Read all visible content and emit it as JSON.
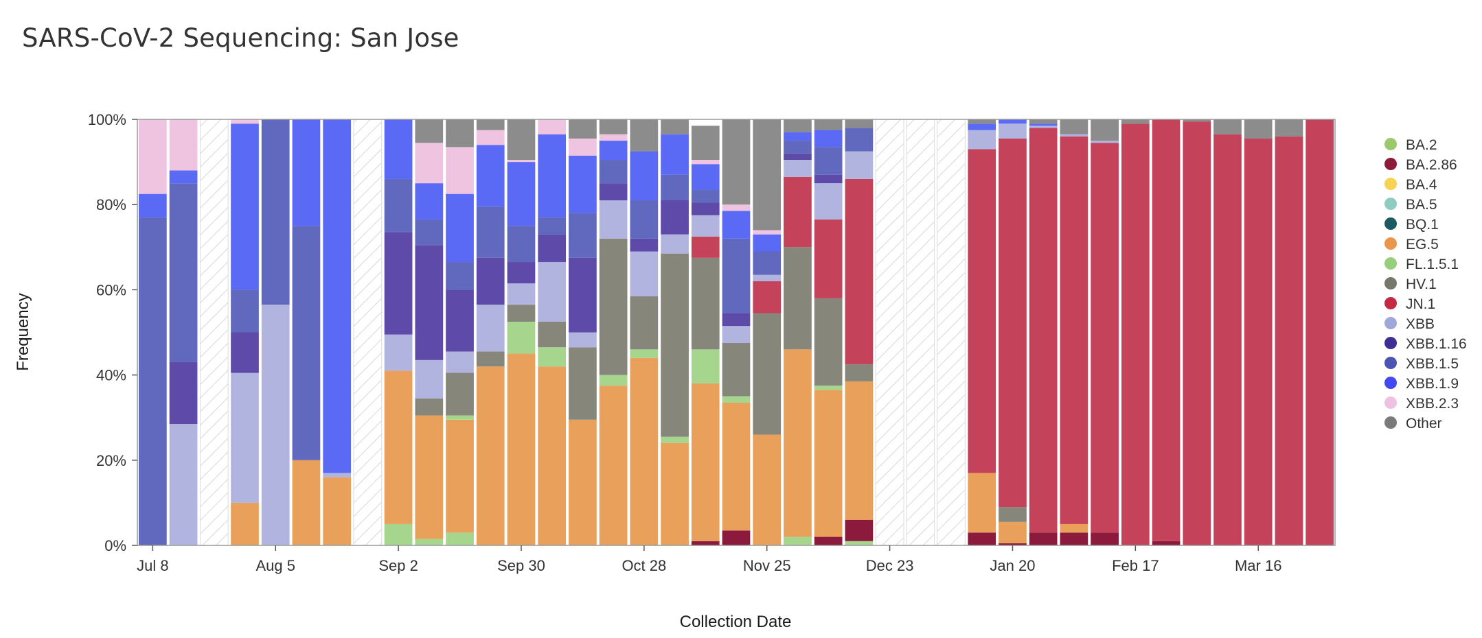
{
  "page": {
    "title": "SARS-CoV-2 Sequencing: San Jose"
  },
  "chart_data": {
    "type": "bar",
    "stacked": true,
    "title": "SARS-CoV-2 Sequencing: San Jose",
    "xlabel": "Collection Date",
    "ylabel": "Frequency",
    "ylim": [
      0,
      100
    ],
    "y_ticks": [
      "0%",
      "20%",
      "40%",
      "60%",
      "80%",
      "100%"
    ],
    "x_tick_labels": [
      "Jul 8",
      "Aug 5",
      "Sep 2",
      "Sep 30",
      "Oct 28",
      "Nov 25",
      "Dec 23",
      "Jan 20",
      "Feb 17",
      "Mar 16"
    ],
    "x_tick_weeks": [
      0,
      4,
      8,
      12,
      16,
      20,
      24,
      28,
      32,
      36
    ],
    "legend_position": "right",
    "series": [
      {
        "name": "BA.2",
        "color": "#9cce6b"
      },
      {
        "name": "BA.2.86",
        "color": "#8b1a3c"
      },
      {
        "name": "BA.4",
        "color": "#f5d456"
      },
      {
        "name": "BA.5",
        "color": "#89cbc0"
      },
      {
        "name": "BQ.1",
        "color": "#1f5a60"
      },
      {
        "name": "EG.5",
        "color": "#e8a05a"
      },
      {
        "name": "FL.1.5.1",
        "color": "#a6d68e"
      },
      {
        "name": "HV.1",
        "color": "#86877a"
      },
      {
        "name": "JN.1",
        "color": "#c5435a"
      },
      {
        "name": "XBB",
        "color": "#b0b4de"
      },
      {
        "name": "XBB.1.16",
        "color": "#5e4aa8"
      },
      {
        "name": "XBB.1.5",
        "color": "#6069bd"
      },
      {
        "name": "XBB.1.9",
        "color": "#5b6af5"
      },
      {
        "name": "XBB.2.3",
        "color": "#efc4e0"
      },
      {
        "name": "Other",
        "color": "#8c8c8c"
      }
    ],
    "legend_colors": {
      "BA.2": "#9bc96d",
      "BA.2.86": "#8b1d3a",
      "BA.4": "#f7d354",
      "BA.5": "#8ecbc2",
      "BQ.1": "#1c5a61",
      "EG.5": "#e9974a",
      "FL.1.5.1": "#97d07c",
      "HV.1": "#77786a",
      "JN.1": "#c42a45",
      "XBB": "#9fa8da",
      "XBB.1.16": "#3f2f94",
      "XBB.1.5": "#4c55b3",
      "XBB.1.9": "#4249f0",
      "XBB.2.3": "#f0c0e0",
      "Other": "#7a7a7a"
    },
    "bars": [
      {
        "week": 0,
        "stack": [
          [
            "XBB.1.5",
            77
          ],
          [
            "XBB.1.9",
            5.5
          ],
          [
            "XBB.2.3",
            17.5
          ]
        ]
      },
      {
        "week": 1,
        "stack": [
          [
            "XBB",
            28.5
          ],
          [
            "XBB.1.16",
            14.5
          ],
          [
            "XBB.1.5",
            42
          ],
          [
            "XBB.1.9",
            3
          ],
          [
            "XBB.2.3",
            12
          ]
        ]
      },
      {
        "week": 2,
        "nodata": true
      },
      {
        "week": 3,
        "stack": [
          [
            "EG.5",
            10
          ],
          [
            "XBB",
            30.5
          ],
          [
            "XBB.1.16",
            9.5
          ],
          [
            "XBB.1.5",
            10
          ],
          [
            "XBB.1.9",
            39
          ],
          [
            "XBB.2.3",
            1
          ]
        ]
      },
      {
        "week": 4,
        "stack": [
          [
            "XBB",
            56.5
          ],
          [
            "XBB.1.5",
            43.5
          ]
        ]
      },
      {
        "week": 5,
        "stack": [
          [
            "EG.5",
            20
          ],
          [
            "XBB.1.5",
            55
          ],
          [
            "XBB.1.9",
            25
          ]
        ]
      },
      {
        "week": 6,
        "stack": [
          [
            "EG.5",
            16
          ],
          [
            "XBB",
            1
          ],
          [
            "XBB.1.9",
            83
          ]
        ]
      },
      {
        "week": 7,
        "nodata": true
      },
      {
        "week": 8,
        "stack": [
          [
            "FL.1.5.1",
            5
          ],
          [
            "EG.5",
            36
          ],
          [
            "XBB",
            8.5
          ],
          [
            "XBB.1.16",
            24
          ],
          [
            "XBB.1.5",
            12.5
          ],
          [
            "XBB.1.9",
            14
          ]
        ]
      },
      {
        "week": 9,
        "stack": [
          [
            "FL.1.5.1",
            1.5
          ],
          [
            "EG.5",
            29
          ],
          [
            "HV.1",
            4
          ],
          [
            "XBB",
            9
          ],
          [
            "XBB.1.16",
            27
          ],
          [
            "XBB.1.5",
            6
          ],
          [
            "XBB.1.9",
            8.5
          ],
          [
            "XBB.2.3",
            9.5
          ],
          [
            "Other",
            5.5
          ]
        ]
      },
      {
        "week": 10,
        "stack": [
          [
            "FL.1.5.1",
            3
          ],
          [
            "EG.5",
            26.5
          ],
          [
            "FL.1.5.1",
            1
          ],
          [
            "HV.1",
            10
          ],
          [
            "XBB",
            5
          ],
          [
            "XBB.1.16",
            14.5
          ],
          [
            "XBB.1.5",
            6.5
          ],
          [
            "XBB.1.9",
            16
          ],
          [
            "XBB.2.3",
            11
          ],
          [
            "Other",
            6.5
          ]
        ]
      },
      {
        "week": 11,
        "stack": [
          [
            "EG.5",
            42
          ],
          [
            "HV.1",
            3.5
          ],
          [
            "XBB",
            11
          ],
          [
            "XBB.1.16",
            11
          ],
          [
            "XBB.1.5",
            12
          ],
          [
            "XBB.1.9",
            14.5
          ],
          [
            "XBB.2.3",
            3.5
          ],
          [
            "Other",
            2.5
          ]
        ]
      },
      {
        "week": 12,
        "stack": [
          [
            "EG.5",
            45
          ],
          [
            "FL.1.5.1",
            7.5
          ],
          [
            "HV.1",
            4
          ],
          [
            "XBB",
            5
          ],
          [
            "XBB.1.16",
            5
          ],
          [
            "XBB.1.5",
            8.5
          ],
          [
            "XBB.1.9",
            15
          ],
          [
            "XBB.2.3",
            0.5
          ],
          [
            "Other",
            9.5
          ]
        ]
      },
      {
        "week": 13,
        "stack": [
          [
            "EG.5",
            42
          ],
          [
            "FL.1.5.1",
            4.5
          ],
          [
            "HV.1",
            6
          ],
          [
            "XBB",
            14
          ],
          [
            "XBB.1.16",
            6.5
          ],
          [
            "XBB.1.5",
            4
          ],
          [
            "XBB.1.9",
            19.5
          ],
          [
            "XBB.2.3",
            3.5
          ]
        ]
      },
      {
        "week": 14,
        "stack": [
          [
            "EG.5",
            29.5
          ],
          [
            "HV.1",
            17
          ],
          [
            "XBB",
            3.5
          ],
          [
            "XBB.1.16",
            17.5
          ],
          [
            "XBB.1.5",
            10.5
          ],
          [
            "XBB.1.9",
            13.5
          ],
          [
            "XBB.2.3",
            4
          ],
          [
            "Other",
            4.5
          ]
        ]
      },
      {
        "week": 15,
        "stack": [
          [
            "EG.5",
            37.5
          ],
          [
            "FL.1.5.1",
            2.5
          ],
          [
            "HV.1",
            32
          ],
          [
            "XBB",
            9
          ],
          [
            "XBB.1.16",
            4
          ],
          [
            "XBB.1.5",
            5.5
          ],
          [
            "XBB.1.9",
            4.5
          ],
          [
            "XBB.2.3",
            1.5
          ],
          [
            "Other",
            3.5
          ]
        ]
      },
      {
        "week": 16,
        "stack": [
          [
            "EG.5",
            44
          ],
          [
            "FL.1.5.1",
            2
          ],
          [
            "HV.1",
            12.5
          ],
          [
            "XBB",
            10.5
          ],
          [
            "XBB.1.16",
            3
          ],
          [
            "XBB.1.5",
            9
          ],
          [
            "XBB.1.9",
            11.5
          ],
          [
            "Other",
            7.5
          ]
        ]
      },
      {
        "week": 17,
        "stack": [
          [
            "EG.5",
            24
          ],
          [
            "FL.1.5.1",
            1.5
          ],
          [
            "HV.1",
            43
          ],
          [
            "XBB",
            4.5
          ],
          [
            "XBB.1.16",
            8
          ],
          [
            "XBB.1.5",
            6
          ],
          [
            "XBB.1.9",
            9.5
          ],
          [
            "Other",
            3.5
          ]
        ]
      },
      {
        "week": 18,
        "stack": [
          [
            "BA.2.86",
            1
          ],
          [
            "EG.5",
            37
          ],
          [
            "FL.1.5.1",
            8
          ],
          [
            "HV.1",
            21.5
          ],
          [
            "JN.1",
            5
          ],
          [
            "XBB",
            5
          ],
          [
            "XBB.1.16",
            3
          ],
          [
            "XBB.1.5",
            3
          ],
          [
            "XBB.1.9",
            6
          ],
          [
            "XBB.2.3",
            1
          ],
          [
            "Other",
            8
          ]
        ]
      },
      {
        "week": 19,
        "stack": [
          [
            "BA.2.86",
            3.5
          ],
          [
            "EG.5",
            30
          ],
          [
            "FL.1.5.1",
            1.5
          ],
          [
            "HV.1",
            12.5
          ],
          [
            "XBB",
            4
          ],
          [
            "XBB.1.16",
            3
          ],
          [
            "XBB.1.5",
            17.5
          ],
          [
            "XBB.1.9",
            6.5
          ],
          [
            "XBB.2.3",
            1.5
          ],
          [
            "Other",
            20
          ]
        ]
      },
      {
        "week": 20,
        "stack": [
          [
            "EG.5",
            26
          ],
          [
            "HV.1",
            28.5
          ],
          [
            "JN.1",
            7.5
          ],
          [
            "XBB",
            1.5
          ],
          [
            "XBB.1.5",
            5.5
          ],
          [
            "XBB.1.9",
            4
          ],
          [
            "XBB.2.3",
            1
          ],
          [
            "Other",
            26
          ]
        ]
      },
      {
        "week": 21,
        "stack": [
          [
            "FL.1.5.1",
            2
          ],
          [
            "EG.5",
            44
          ],
          [
            "HV.1",
            24
          ],
          [
            "JN.1",
            16.5
          ],
          [
            "XBB",
            4
          ],
          [
            "XBB.1.16",
            1.5
          ],
          [
            "XBB.1.5",
            3
          ],
          [
            "XBB.1.9",
            2
          ],
          [
            "Other",
            3
          ]
        ]
      },
      {
        "week": 22,
        "stack": [
          [
            "BA.2.86",
            2
          ],
          [
            "EG.5",
            34.5
          ],
          [
            "FL.1.5.1",
            1
          ],
          [
            "HV.1",
            20.5
          ],
          [
            "JN.1",
            18.5
          ],
          [
            "XBB",
            8.5
          ],
          [
            "XBB.1.16",
            2
          ],
          [
            "XBB.1.5",
            6.5
          ],
          [
            "XBB.1.9",
            4
          ],
          [
            "Other",
            2.5
          ]
        ]
      },
      {
        "week": 23,
        "stack": [
          [
            "FL.1.5.1",
            1
          ],
          [
            "BA.2.86",
            5
          ],
          [
            "EG.5",
            32.5
          ],
          [
            "HV.1",
            4
          ],
          [
            "JN.1",
            43.5
          ],
          [
            "XBB",
            6.5
          ],
          [
            "XBB.1.5",
            5.5
          ],
          [
            "Other",
            2
          ]
        ]
      },
      {
        "week": 24,
        "nodata": true
      },
      {
        "week": 25,
        "nodata": true
      },
      {
        "week": 26,
        "nodata": true
      },
      {
        "week": 27,
        "stack": [
          [
            "BA.2.86",
            3
          ],
          [
            "EG.5",
            14
          ],
          [
            "JN.1",
            76
          ],
          [
            "XBB",
            4.5
          ],
          [
            "XBB.1.9",
            1.5
          ],
          [
            "Other",
            1
          ]
        ]
      },
      {
        "week": 28,
        "stack": [
          [
            "BA.2.86",
            0.5
          ],
          [
            "EG.5",
            5
          ],
          [
            "HV.1",
            3.5
          ],
          [
            "JN.1",
            86.5
          ],
          [
            "XBB",
            3.5
          ],
          [
            "XBB.1.9",
            1
          ]
        ]
      },
      {
        "week": 29,
        "stack": [
          [
            "BA.2.86",
            3
          ],
          [
            "JN.1",
            95
          ],
          [
            "XBB",
            0.5
          ],
          [
            "XBB.1.9",
            0.5
          ],
          [
            "Other",
            1
          ]
        ]
      },
      {
        "week": 30,
        "stack": [
          [
            "BA.2.86",
            3
          ],
          [
            "EG.5",
            2
          ],
          [
            "JN.1",
            91
          ],
          [
            "XBB",
            0.5
          ],
          [
            "Other",
            3.5
          ]
        ]
      },
      {
        "week": 31,
        "stack": [
          [
            "BA.2.86",
            3
          ],
          [
            "JN.1",
            91.5
          ],
          [
            "XBB",
            0.5
          ],
          [
            "Other",
            5
          ]
        ]
      },
      {
        "week": 32,
        "stack": [
          [
            "JN.1",
            99
          ],
          [
            "Other",
            1
          ]
        ]
      },
      {
        "week": 33,
        "stack": [
          [
            "BA.2.86",
            1
          ],
          [
            "JN.1",
            99
          ]
        ]
      },
      {
        "week": 34,
        "stack": [
          [
            "JN.1",
            99.5
          ],
          [
            "Other",
            0.5
          ]
        ]
      },
      {
        "week": 35,
        "stack": [
          [
            "JN.1",
            96.5
          ],
          [
            "Other",
            3.5
          ]
        ]
      },
      {
        "week": 36,
        "stack": [
          [
            "JN.1",
            95.5
          ],
          [
            "Other",
            4.5
          ]
        ]
      },
      {
        "week": 37,
        "stack": [
          [
            "JN.1",
            96
          ],
          [
            "Other",
            4
          ]
        ]
      },
      {
        "week": 38,
        "stack": [
          [
            "JN.1",
            100
          ]
        ]
      }
    ]
  }
}
